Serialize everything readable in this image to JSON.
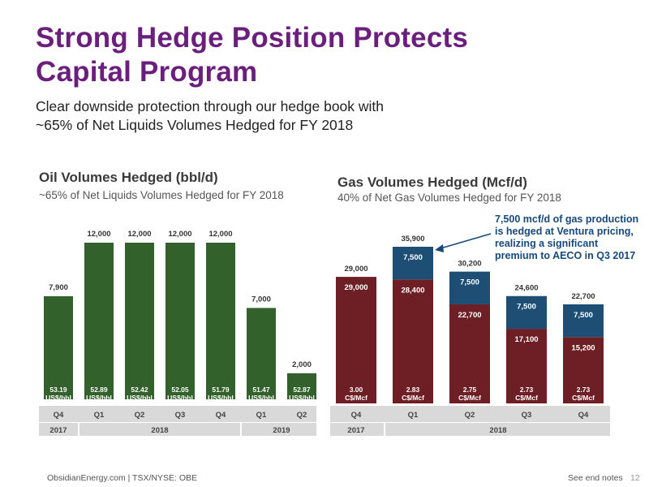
{
  "title": {
    "line1": "Strong Hedge Position Protects",
    "line2": "Capital Program"
  },
  "subtitle": {
    "line1": "Clear downside protection through our hedge book with",
    "line2": "~65% of Net Liquids Volumes Hedged for FY 2018"
  },
  "colors": {
    "title": "#6b1f7c",
    "oil": "#33612b",
    "gas_red": "#6d1f25",
    "gas_blue": "#1f4e75",
    "axis_band": "#d9d9d9",
    "annotation": "#16497a"
  },
  "chart_data": [
    {
      "type": "bar",
      "title": "Oil Volumes Hedged (bbl/d)",
      "subtitle": "~65% of Net Liquids Volumes Hedged for FY 2018",
      "categories": [
        "Q4",
        "Q1",
        "Q2",
        "Q3",
        "Q4",
        "Q1",
        "Q2"
      ],
      "year_groups": [
        {
          "label": "2017",
          "span": 1
        },
        {
          "label": "2018",
          "span": 4
        },
        {
          "label": "2019",
          "span": 2
        }
      ],
      "values": [
        7900,
        12000,
        12000,
        12000,
        12000,
        7000,
        2000
      ],
      "value_labels": [
        "7,900",
        "12,000",
        "12,000",
        "12,000",
        "12,000",
        "7,000",
        "2,000"
      ],
      "price_labels": [
        [
          "53.19",
          "US$/bbl"
        ],
        [
          "52.89",
          "US$/bbl"
        ],
        [
          "52.42",
          "US$/bbl"
        ],
        [
          "52.05",
          "US$/bbl"
        ],
        [
          "51.79",
          "US$/bbl"
        ],
        [
          "51.47",
          "US$/bbl"
        ],
        [
          "52.87",
          "US$/bbl"
        ]
      ],
      "ylim": [
        0,
        12000
      ]
    },
    {
      "type": "bar",
      "stacked": true,
      "title": "Gas Volumes Hedged (Mcf/d)",
      "subtitle": "40% of Net Gas Volumes Hedged for FY 2018",
      "categories": [
        "Q4",
        "Q1",
        "Q2",
        "Q3",
        "Q4"
      ],
      "year_groups": [
        {
          "label": "2017",
          "span": 1
        },
        {
          "label": "2018",
          "span": 4
        }
      ],
      "series": [
        {
          "values": [
            29000,
            28400,
            22700,
            17100,
            15200
          ],
          "labels": [
            "29,000",
            "28,400",
            "22,700",
            "17,100",
            "15,200"
          ]
        },
        {
          "values": [
            0,
            7500,
            7500,
            7500,
            7500
          ],
          "labels": [
            "",
            "7,500",
            "7,500",
            "7,500",
            "7,500"
          ]
        }
      ],
      "totals": [
        "29,000",
        "35,900",
        "30,200",
        "24,600",
        "22,700"
      ],
      "price_labels": [
        [
          "3.00",
          "C$/Mcf"
        ],
        [
          "2.83",
          "C$/Mcf"
        ],
        [
          "2.75",
          "C$/Mcf"
        ],
        [
          "2.73",
          "C$/Mcf"
        ],
        [
          "2.73",
          "C$/Mcf"
        ]
      ],
      "ylim": [
        0,
        35900
      ],
      "annotation": "7,500 mcf/d of gas production is hedged at Ventura pricing,  realizing a significant premium to AECO in Q3 2017"
    }
  ],
  "footer": {
    "left": "ObsidianEnergy.com | TSX/NYSE: OBE",
    "right": "See end notes",
    "page": "12"
  }
}
